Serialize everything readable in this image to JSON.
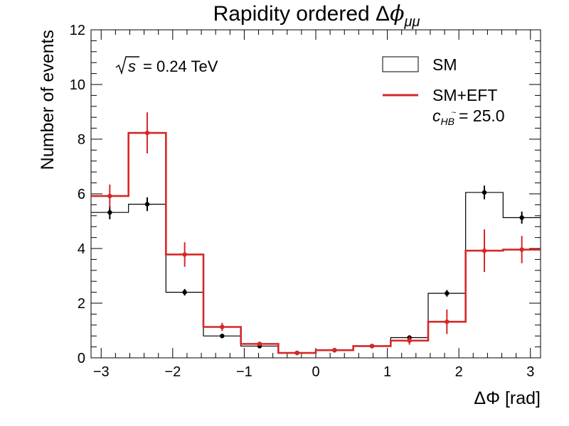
{
  "chart_data": {
    "type": "histogram",
    "title_main": "Rapidity ordered Δ",
    "title_phi": "ϕ",
    "title_sub": "μμ",
    "xlabel": "ΔΦ [rad]",
    "ylabel": "Number of events",
    "xlim": [
      -3.1416,
      3.1416
    ],
    "ylim": [
      0,
      12
    ],
    "x_ticks": [
      -3,
      -2,
      -1,
      0,
      1,
      2,
      3
    ],
    "y_ticks": [
      0,
      2,
      4,
      6,
      8,
      10,
      12
    ],
    "annotation": {
      "root": "s",
      "value": "= 0.24 TeV"
    },
    "bin_edges": [
      -3.1416,
      -2.618,
      -2.0944,
      -1.5708,
      -1.0472,
      -0.5236,
      0,
      0.5236,
      1.0472,
      1.5708,
      2.0944,
      2.618,
      3.1416
    ],
    "series": [
      {
        "name": "SM",
        "color": "#000000",
        "values": [
          5.32,
          5.62,
          2.4,
          0.8,
          0.43,
          0.18,
          0.28,
          0.43,
          0.74,
          2.36,
          6.05,
          5.13
        ],
        "errors": [
          0.25,
          0.25,
          0.12,
          0.06,
          0.04,
          0.03,
          0.04,
          0.04,
          0.06,
          0.12,
          0.25,
          0.22
        ]
      },
      {
        "name": "SM+EFT",
        "color": "#d62728",
        "values": [
          5.92,
          8.23,
          3.78,
          1.13,
          0.51,
          0.18,
          0.28,
          0.43,
          0.63,
          1.32,
          3.92,
          3.96
        ],
        "errors": [
          0.42,
          0.75,
          0.45,
          0.15,
          0.07,
          0.03,
          0.04,
          0.05,
          0.15,
          0.45,
          0.78,
          0.5
        ]
      }
    ],
    "legend": {
      "placement": "top-right",
      "eft_coef_symbol": "c",
      "eft_coef_sub": "HB",
      "eft_coef_sup": "~",
      "eft_coef_value": "= 25.0"
    }
  }
}
